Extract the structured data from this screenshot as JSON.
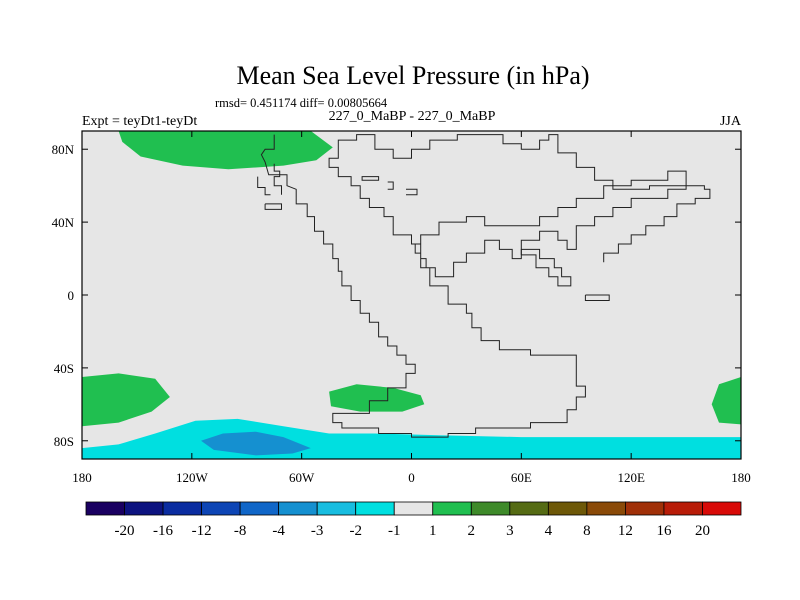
{
  "chart_data": {
    "type": "heatmap",
    "title": "Mean Sea Level Pressure (in hPa)",
    "stats_line": "rmsd= 0.451174 diff= 0.00805664",
    "left_label": "Expt = teyDt1-teyDt",
    "center_label": "227_0_MaBP - 227_0_MaBP",
    "right_label": "JJA",
    "x_range": [
      -180,
      180
    ],
    "y_range": [
      -90,
      90
    ],
    "x_ticks": [
      {
        "value": -180,
        "label": "180"
      },
      {
        "value": -120,
        "label": "120W"
      },
      {
        "value": -60,
        "label": "60W"
      },
      {
        "value": 0,
        "label": "0"
      },
      {
        "value": 60,
        "label": "60E"
      },
      {
        "value": 120,
        "label": "120E"
      },
      {
        "value": 180,
        "label": "180"
      }
    ],
    "y_ticks": [
      {
        "value": 80,
        "label": "80N"
      },
      {
        "value": 40,
        "label": "40N"
      },
      {
        "value": 0,
        "label": "0"
      },
      {
        "value": -40,
        "label": "40S"
      },
      {
        "value": -80,
        "label": "80S"
      }
    ],
    "colorbar": {
      "colors": [
        "#1a0061",
        "#0d1380",
        "#0a2ca0",
        "#0d45b5",
        "#1066c8",
        "#1590d0",
        "#18bde0",
        "#00dfe0",
        "#e6e6e6",
        "#20bf50",
        "#3e8a2a",
        "#556b14",
        "#6d5808",
        "#8a4a08",
        "#a03008",
        "#b81c08",
        "#d80a08"
      ],
      "labels": [
        "-20",
        "-16",
        "-12",
        "-8",
        "-4",
        "-3",
        "-2",
        "-1",
        "1",
        "2",
        "3",
        "4",
        "8",
        "12",
        "16",
        "20"
      ]
    },
    "background_color": "#e6e6e6",
    "regions": [
      {
        "name": "arctic-positive",
        "color": "#20bf50",
        "points": [
          [
            -160,
            90
          ],
          [
            -55,
            90
          ],
          [
            -43,
            81
          ],
          [
            -52,
            74
          ],
          [
            -70,
            71
          ],
          [
            -100,
            69
          ],
          [
            -125,
            71
          ],
          [
            -148,
            76
          ],
          [
            -158,
            84
          ]
        ]
      },
      {
        "name": "south-pacific-positive",
        "color": "#20bf50",
        "points": [
          [
            -180,
            -45
          ],
          [
            -160,
            -43
          ],
          [
            -140,
            -46
          ],
          [
            -132,
            -56
          ],
          [
            -142,
            -64
          ],
          [
            -160,
            -70
          ],
          [
            -180,
            -72
          ]
        ]
      },
      {
        "name": "south-atlantic-positive",
        "color": "#20bf50",
        "points": [
          [
            -45,
            -53
          ],
          [
            -30,
            -49
          ],
          [
            -10,
            -51
          ],
          [
            5,
            -55
          ],
          [
            7,
            -60
          ],
          [
            -5,
            -64
          ],
          [
            -28,
            -64
          ],
          [
            -44,
            -61
          ]
        ]
      },
      {
        "name": "east-edge-positive",
        "color": "#20bf50",
        "points": [
          [
            180,
            -45
          ],
          [
            168,
            -49
          ],
          [
            164,
            -60
          ],
          [
            168,
            -70
          ],
          [
            180,
            -71
          ]
        ]
      },
      {
        "name": "antarctic-negative-1",
        "color": "#00dfe0",
        "points": [
          [
            -180,
            -84
          ],
          [
            -160,
            -82
          ],
          [
            -140,
            -76
          ],
          [
            -118,
            -69
          ],
          [
            -95,
            -68
          ],
          [
            -70,
            -72
          ],
          [
            -45,
            -76
          ],
          [
            -20,
            -76
          ],
          [
            15,
            -77
          ],
          [
            60,
            -78
          ],
          [
            120,
            -78
          ],
          [
            180,
            -78
          ],
          [
            180,
            -90
          ],
          [
            -180,
            -90
          ]
        ]
      },
      {
        "name": "antarctic-negative-2",
        "color": "#1590d0",
        "points": [
          [
            -115,
            -80
          ],
          [
            -103,
            -76
          ],
          [
            -85,
            -75
          ],
          [
            -70,
            -78
          ],
          [
            -55,
            -84
          ],
          [
            -65,
            -87
          ],
          [
            -85,
            -88
          ],
          [
            -108,
            -85
          ]
        ]
      }
    ],
    "coastlines": [
      [
        [
          -75,
          88
        ],
        [
          -75,
          80
        ],
        [
          -80,
          80
        ],
        [
          -82,
          77
        ],
        [
          -80,
          73
        ],
        [
          -78,
          66
        ],
        [
          -68,
          66
        ],
        [
          -68,
          60
        ],
        [
          -63,
          58
        ],
        [
          -63,
          50
        ],
        [
          -57,
          50
        ],
        [
          -57,
          43
        ],
        [
          -53,
          43
        ],
        [
          -53,
          35
        ],
        [
          -48,
          35
        ],
        [
          -48,
          28
        ],
        [
          -43,
          28
        ],
        [
          -43,
          20
        ],
        [
          -40,
          20
        ],
        [
          -40,
          13
        ],
        [
          -38,
          13
        ],
        [
          -38,
          5
        ],
        [
          -33,
          5
        ],
        [
          -33,
          -3
        ],
        [
          -28,
          -3
        ],
        [
          -28,
          -10
        ],
        [
          -23,
          -10
        ],
        [
          -23,
          -15
        ],
        [
          -18,
          -15
        ],
        [
          -18,
          -23
        ],
        [
          -13,
          -23
        ],
        [
          -13,
          -28
        ],
        [
          -8,
          -28
        ],
        [
          -8,
          -33
        ],
        [
          -3,
          -33
        ],
        [
          -3,
          -38
        ],
        [
          2,
          -38
        ],
        [
          2,
          -43
        ],
        [
          -3,
          -43
        ],
        [
          -3,
          -51
        ],
        [
          -13,
          -51
        ],
        [
          -13,
          -58
        ],
        [
          -23,
          -58
        ],
        [
          -23,
          -65
        ],
        [
          -43,
          -65
        ],
        [
          -43,
          -70
        ],
        [
          -38,
          -70
        ],
        [
          -38,
          -73
        ],
        [
          -18,
          -73
        ],
        [
          -18,
          -76
        ],
        [
          0,
          -76
        ],
        [
          0,
          -78
        ],
        [
          20,
          -78
        ],
        [
          20,
          -76
        ],
        [
          35,
          -76
        ],
        [
          35,
          -73
        ],
        [
          65,
          -73
        ],
        [
          65,
          -70
        ],
        [
          85,
          -70
        ],
        [
          85,
          -63
        ],
        [
          90,
          -63
        ],
        [
          90,
          -56
        ],
        [
          95,
          -56
        ],
        [
          95,
          -50
        ],
        [
          90,
          -50
        ],
        [
          90,
          -33
        ],
        [
          65,
          -33
        ],
        [
          65,
          -30
        ],
        [
          48,
          -30
        ],
        [
          48,
          -25
        ],
        [
          38,
          -25
        ],
        [
          38,
          -18
        ],
        [
          33,
          -18
        ],
        [
          33,
          -10
        ],
        [
          30,
          -10
        ],
        [
          30,
          -5
        ],
        [
          20,
          -5
        ],
        [
          20,
          5
        ],
        [
          10,
          5
        ],
        [
          10,
          15
        ],
        [
          5,
          15
        ],
        [
          5,
          23
        ],
        [
          2,
          23
        ],
        [
          2,
          28
        ],
        [
          5,
          28
        ],
        [
          5,
          33
        ],
        [
          15,
          33
        ],
        [
          15,
          40
        ],
        [
          30,
          40
        ],
        [
          30,
          43
        ],
        [
          40,
          43
        ],
        [
          40,
          38
        ],
        [
          70,
          38
        ],
        [
          70,
          43
        ],
        [
          80,
          43
        ],
        [
          80,
          48
        ],
        [
          90,
          48
        ],
        [
          90,
          53
        ],
        [
          105,
          53
        ],
        [
          105,
          60
        ],
        [
          120,
          60
        ],
        [
          120,
          63
        ],
        [
          140,
          63
        ],
        [
          140,
          68
        ],
        [
          150,
          68
        ],
        [
          150,
          58
        ],
        [
          140,
          58
        ],
        [
          140,
          53
        ],
        [
          120,
          53
        ],
        [
          120,
          48
        ],
        [
          110,
          48
        ],
        [
          110,
          43
        ],
        [
          100,
          43
        ],
        [
          100,
          38
        ],
        [
          90,
          38
        ],
        [
          90,
          25
        ],
        [
          85,
          25
        ],
        [
          85,
          30
        ],
        [
          80,
          30
        ],
        [
          80,
          35
        ],
        [
          70,
          35
        ],
        [
          70,
          30
        ],
        [
          60,
          30
        ],
        [
          60,
          20
        ],
        [
          55,
          20
        ],
        [
          55,
          25
        ],
        [
          48,
          25
        ],
        [
          48,
          30
        ],
        [
          40,
          30
        ],
        [
          40,
          23
        ],
        [
          30,
          23
        ],
        [
          30,
          18
        ],
        [
          23,
          18
        ],
        [
          23,
          10
        ],
        [
          13,
          10
        ],
        [
          13,
          15
        ],
        [
          8,
          15
        ],
        [
          8,
          20
        ],
        [
          5,
          20
        ],
        [
          5,
          28
        ],
        [
          0,
          28
        ],
        [
          0,
          33
        ],
        [
          -10,
          33
        ],
        [
          -10,
          43
        ],
        [
          -15,
          43
        ],
        [
          -15,
          48
        ],
        [
          -23,
          48
        ],
        [
          -23,
          53
        ],
        [
          -28,
          53
        ],
        [
          -28,
          60
        ],
        [
          -33,
          60
        ],
        [
          -33,
          65
        ],
        [
          -40,
          65
        ],
        [
          -40,
          70
        ],
        [
          -45,
          70
        ],
        [
          -45,
          75
        ],
        [
          -40,
          75
        ],
        [
          -40,
          85
        ],
        [
          -30,
          85
        ],
        [
          -30,
          88
        ],
        [
          -20,
          88
        ],
        [
          -20,
          80
        ],
        [
          -10,
          80
        ],
        [
          -10,
          75
        ],
        [
          0,
          75
        ],
        [
          0,
          80
        ],
        [
          10,
          80
        ],
        [
          10,
          85
        ],
        [
          25,
          85
        ],
        [
          25,
          88
        ],
        [
          50,
          88
        ],
        [
          50,
          83
        ],
        [
          60,
          83
        ],
        [
          60,
          80
        ],
        [
          70,
          80
        ],
        [
          70,
          85
        ],
        [
          75,
          85
        ],
        [
          75,
          88
        ],
        [
          80,
          88
        ],
        [
          80,
          78
        ],
        [
          90,
          78
        ],
        [
          90,
          70
        ],
        [
          100,
          70
        ],
        [
          100,
          63
        ],
        [
          110,
          63
        ],
        [
          110,
          58
        ],
        [
          130,
          58
        ],
        [
          130,
          60
        ],
        [
          160,
          60
        ],
        [
          160,
          58
        ],
        [
          163,
          58
        ],
        [
          163,
          53
        ],
        [
          155,
          53
        ],
        [
          155,
          50
        ],
        [
          145,
          50
        ],
        [
          145,
          43
        ],
        [
          138,
          43
        ],
        [
          138,
          38
        ],
        [
          128,
          38
        ],
        [
          128,
          33
        ],
        [
          120,
          33
        ],
        [
          120,
          28
        ],
        [
          113,
          28
        ],
        [
          113,
          23
        ],
        [
          105,
          23
        ],
        [
          105,
          18
        ]
      ],
      [
        [
          -75,
          72
        ],
        [
          -75,
          68
        ],
        [
          -72,
          68
        ],
        [
          -72,
          65
        ],
        [
          -75,
          65
        ],
        [
          -75,
          60
        ],
        [
          -71,
          60
        ],
        [
          -71,
          55
        ]
      ],
      [
        [
          -84,
          65
        ],
        [
          -84,
          59
        ],
        [
          -80,
          59
        ],
        [
          -80,
          55
        ],
        [
          -77,
          55
        ]
      ],
      [
        [
          -20,
          65
        ],
        [
          -27,
          65
        ],
        [
          -27,
          63
        ],
        [
          -18,
          63
        ],
        [
          -18,
          65
        ],
        [
          -20,
          65
        ]
      ],
      [
        [
          -80,
          50
        ],
        [
          -71,
          50
        ],
        [
          -71,
          47
        ],
        [
          -80,
          47
        ],
        [
          -80,
          50
        ]
      ],
      [
        [
          -13,
          62
        ],
        [
          -10,
          62
        ],
        [
          -10,
          58
        ],
        [
          -13,
          58
        ]
      ],
      [
        [
          -3,
          58
        ],
        [
          3,
          58
        ],
        [
          3,
          55
        ],
        [
          -3,
          55
        ]
      ],
      [
        [
          60,
          22
        ],
        [
          68,
          22
        ],
        [
          68,
          15
        ],
        [
          75,
          15
        ],
        [
          75,
          10
        ],
        [
          80,
          10
        ],
        [
          80,
          5
        ],
        [
          87,
          5
        ],
        [
          87,
          10
        ],
        [
          82,
          10
        ],
        [
          82,
          15
        ],
        [
          78,
          15
        ],
        [
          78,
          20
        ],
        [
          70,
          20
        ],
        [
          70,
          25
        ],
        [
          60,
          25
        ],
        [
          60,
          22
        ]
      ],
      [
        [
          95,
          0
        ],
        [
          108,
          0
        ],
        [
          108,
          -3
        ],
        [
          95,
          -3
        ],
        [
          95,
          0
        ]
      ]
    ]
  }
}
